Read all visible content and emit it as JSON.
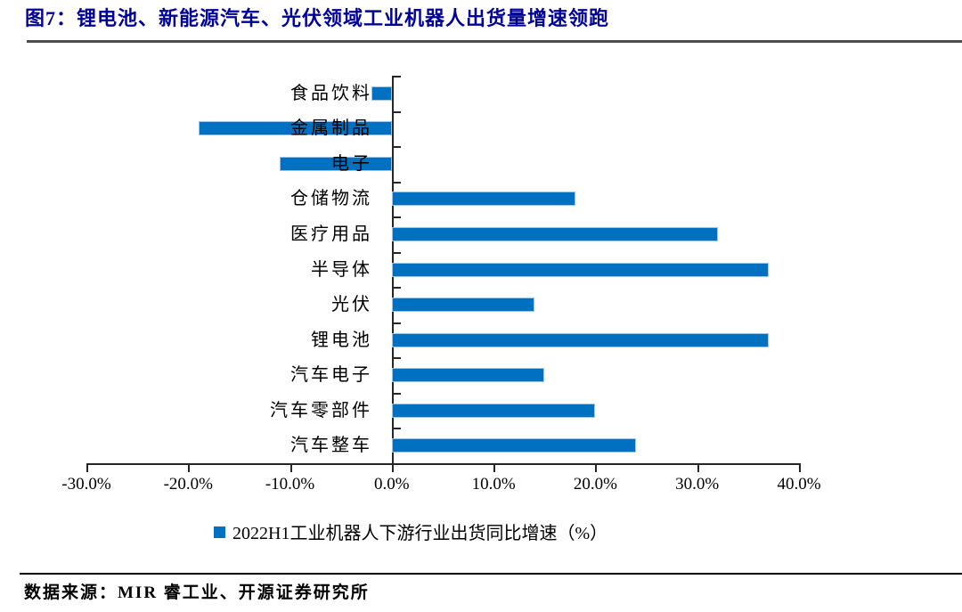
{
  "figure": {
    "title": "图7：锂电池、新能源汽车、光伏领域工业机器人出货量增速领跑",
    "source": "数据来源：MIR 睿工业、开源证券研究所"
  },
  "colors": {
    "bar": "#0070C0",
    "bar_border": "#9DC3E6",
    "title_text": "#000099",
    "title_rule": "#4D4D4D",
    "axis": "#262626"
  },
  "chart_data": {
    "type": "bar",
    "orientation": "horizontal",
    "title": "锂电池、新能源汽车、光伏领域工业机器人出货量增速领跑",
    "categories": [
      "食品饮料",
      "金属制品",
      "电子",
      "仓储物流",
      "医疗用品",
      "半导体",
      "光伏",
      "锂电池",
      "汽车电子",
      "汽车零部件",
      "汽车整车"
    ],
    "values": [
      -2.0,
      -19.0,
      -11.0,
      18.0,
      32.0,
      37.0,
      14.0,
      37.0,
      15.0,
      20.0,
      24.0
    ],
    "series_name": "2022H1工业机器人下游行业出货同比增速（%）",
    "xlabel": "",
    "ylabel": "",
    "xlim": [
      -30,
      40
    ],
    "x_tick_values": [
      -30,
      -20,
      -10,
      0,
      10,
      20,
      30,
      40
    ],
    "x_ticks": [
      "-30.0%",
      "-20.0%",
      "-10.0%",
      "0.0%",
      "10.0%",
      "20.0%",
      "30.0%",
      "40.0%"
    ],
    "grid": false,
    "legend_position": "bottom"
  }
}
